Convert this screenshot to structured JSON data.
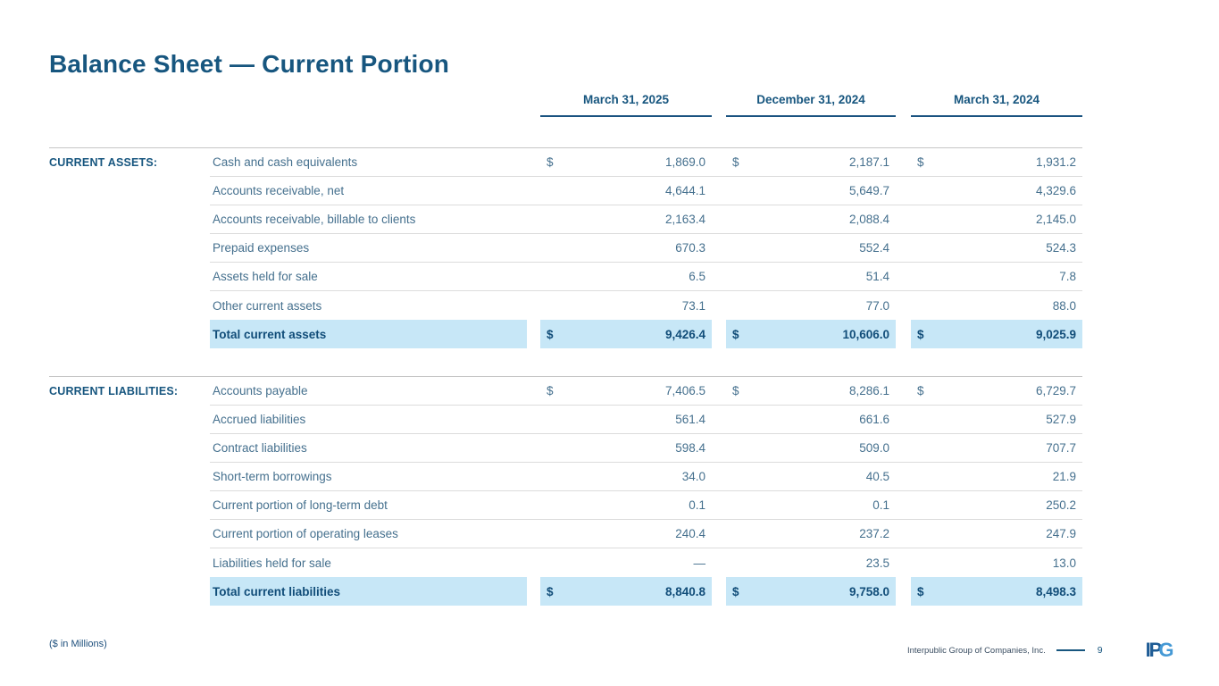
{
  "slide": {
    "title": "Balance Sheet — Current Portion",
    "footnote": "($ in Millions)",
    "footer": {
      "company": "Interpublic Group of Companies, Inc.",
      "page": "9",
      "logo_dark": "IP",
      "logo_light": "G"
    }
  },
  "colors": {
    "accent_navy": "#17567F",
    "body_text": "#45708E",
    "total_highlight": "#C7E7F7",
    "total_text": "#114D79",
    "logo_light_blue": "#4599D5"
  },
  "table": {
    "columns": [
      "March 31, 2025",
      "December 31, 2024",
      "March 31, 2024"
    ],
    "sections": [
      {
        "label": "CURRENT ASSETS:",
        "rows": [
          {
            "label": "Cash and cash equivalents",
            "dollar": true,
            "values": [
              "1,869.0",
              "2,187.1",
              "1,931.2"
            ]
          },
          {
            "label": "Accounts receivable, net",
            "dollar": false,
            "values": [
              "4,644.1",
              "5,649.7",
              "4,329.6"
            ]
          },
          {
            "label": "Accounts receivable, billable to clients",
            "dollar": false,
            "values": [
              "2,163.4",
              "2,088.4",
              "2,145.0"
            ]
          },
          {
            "label": "Prepaid expenses",
            "dollar": false,
            "values": [
              "670.3",
              "552.4",
              "524.3"
            ]
          },
          {
            "label": "Assets held for sale",
            "dollar": false,
            "values": [
              "6.5",
              "51.4",
              "7.8"
            ]
          },
          {
            "label": "Other current assets",
            "dollar": false,
            "values": [
              "73.1",
              "77.0",
              "88.0"
            ]
          }
        ],
        "total": {
          "label": "Total current assets",
          "dollar": true,
          "values": [
            "9,426.4",
            "10,606.0",
            "9,025.9"
          ]
        }
      },
      {
        "label": "CURRENT LIABILITIES:",
        "rows": [
          {
            "label": "Accounts payable",
            "dollar": true,
            "values": [
              "7,406.5",
              "8,286.1",
              "6,729.7"
            ]
          },
          {
            "label": "Accrued liabilities",
            "dollar": false,
            "values": [
              "561.4",
              "661.6",
              "527.9"
            ]
          },
          {
            "label": "Contract liabilities",
            "dollar": false,
            "values": [
              "598.4",
              "509.0",
              "707.7"
            ]
          },
          {
            "label": "Short-term borrowings",
            "dollar": false,
            "values": [
              "34.0",
              "40.5",
              "21.9"
            ]
          },
          {
            "label": "Current portion of long-term debt",
            "dollar": false,
            "values": [
              "0.1",
              "0.1",
              "250.2"
            ]
          },
          {
            "label": "Current portion of operating leases",
            "dollar": false,
            "values": [
              "240.4",
              "237.2",
              "247.9"
            ]
          },
          {
            "label": "Liabilities held for sale",
            "dollar": false,
            "values": [
              "—",
              "23.5",
              "13.0"
            ]
          }
        ],
        "total": {
          "label": "Total current liabilities",
          "dollar": true,
          "values": [
            "8,840.8",
            "9,758.0",
            "8,498.3"
          ]
        }
      }
    ]
  }
}
